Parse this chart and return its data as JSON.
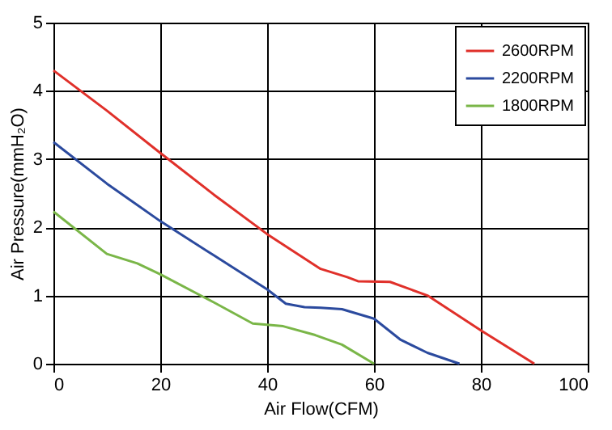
{
  "chart_data": {
    "type": "line",
    "xlabel": "Air Flow(CFM)",
    "ylabel": "Air Pressure(mmH₂O)",
    "xlim": [
      0,
      100
    ],
    "ylim": [
      0,
      5
    ],
    "xticks": [
      0,
      20,
      40,
      60,
      80,
      100
    ],
    "yticks": [
      0,
      1,
      2,
      3,
      4,
      5
    ],
    "grid": true,
    "legend": "top right",
    "marker": "none",
    "line_style": "solid",
    "series": [
      {
        "name": "2600RPM",
        "color": "#e0302a",
        "x": [
          0,
          10,
          20,
          30,
          40,
          50,
          55,
          57,
          63,
          70,
          80,
          90
        ],
        "values": [
          4.3,
          3.71,
          3.09,
          2.48,
          1.9,
          1.39,
          1.27,
          1.21,
          1.2,
          1.0,
          0.49,
          0
        ]
      },
      {
        "name": "2200RPM",
        "color": "#2b4a9e",
        "x": [
          0,
          10,
          20,
          30,
          40,
          43.5,
          47,
          50,
          54,
          60,
          65,
          70,
          76
        ],
        "values": [
          3.25,
          2.64,
          2.09,
          1.59,
          1.09,
          0.88,
          0.83,
          0.82,
          0.8,
          0.66,
          0.35,
          0.16,
          0
        ]
      },
      {
        "name": "1800RPM",
        "color": "#7ab648",
        "x": [
          0,
          10,
          15.7,
          20,
          30,
          37.3,
          43,
          49,
          54,
          60
        ],
        "values": [
          2.23,
          1.61,
          1.47,
          1.31,
          0.9,
          0.59,
          0.55,
          0.42,
          0.28,
          0
        ]
      }
    ]
  }
}
